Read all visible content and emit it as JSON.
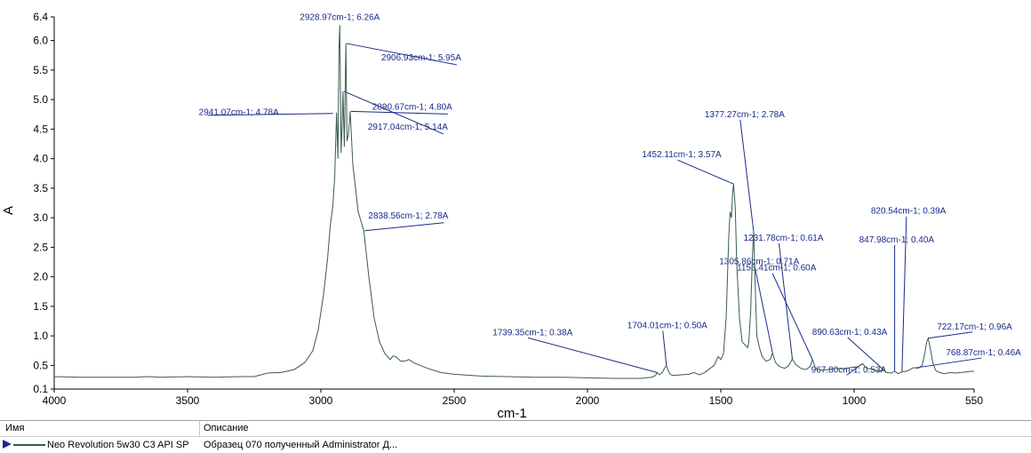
{
  "chart_data": {
    "type": "line",
    "xlabel": "cm-1",
    "ylabel": "A",
    "xlim": [
      4000,
      550
    ],
    "ylim": [
      0.1,
      6.4
    ],
    "x_ticks": [
      4000,
      3500,
      3000,
      2500,
      2000,
      1500,
      1000,
      550
    ],
    "y_ticks": [
      "0.1",
      "0.5",
      "1.0",
      "1.5",
      "2.0",
      "2.5",
      "3.0",
      "3.5",
      "4.0",
      "4.5",
      "5.0",
      "5.5",
      "6.0",
      "6.4"
    ],
    "series": [
      {
        "name": "Neo Revolution 5w30 C3 API SP",
        "color": "#3a5a50",
        "points": [
          [
            4000,
            0.31
          ],
          [
            3900,
            0.3
          ],
          [
            3800,
            0.3
          ],
          [
            3700,
            0.3
          ],
          [
            3650,
            0.31
          ],
          [
            3600,
            0.3
          ],
          [
            3500,
            0.31
          ],
          [
            3400,
            0.3
          ],
          [
            3300,
            0.31
          ],
          [
            3250,
            0.31
          ],
          [
            3200,
            0.37
          ],
          [
            3150,
            0.38
          ],
          [
            3100,
            0.43
          ],
          [
            3060,
            0.55
          ],
          [
            3030,
            0.75
          ],
          [
            3010,
            1.1
          ],
          [
            2990,
            1.7
          ],
          [
            2975,
            2.3
          ],
          [
            2965,
            2.85
          ],
          [
            2955,
            3.2
          ],
          [
            2948,
            3.7
          ],
          [
            2941,
            4.78
          ],
          [
            2936,
            4.0
          ],
          [
            2932,
            5.85
          ],
          [
            2929,
            6.26
          ],
          [
            2924,
            4.1
          ],
          [
            2920,
            4.6
          ],
          [
            2917,
            5.14
          ],
          [
            2912,
            4.2
          ],
          [
            2906,
            5.95
          ],
          [
            2902,
            4.3
          ],
          [
            2897,
            4.4
          ],
          [
            2893,
            4.6
          ],
          [
            2890,
            4.8
          ],
          [
            2880,
            3.9
          ],
          [
            2870,
            3.5
          ],
          [
            2860,
            3.1
          ],
          [
            2850,
            2.95
          ],
          [
            2839,
            2.78
          ],
          [
            2820,
            2.0
          ],
          [
            2800,
            1.3
          ],
          [
            2780,
            0.9
          ],
          [
            2760,
            0.7
          ],
          [
            2740,
            0.6
          ],
          [
            2730,
            0.66
          ],
          [
            2720,
            0.65
          ],
          [
            2700,
            0.57
          ],
          [
            2680,
            0.58
          ],
          [
            2670,
            0.6
          ],
          [
            2650,
            0.54
          ],
          [
            2600,
            0.45
          ],
          [
            2550,
            0.38
          ],
          [
            2500,
            0.35
          ],
          [
            2400,
            0.32
          ],
          [
            2300,
            0.31
          ],
          [
            2200,
            0.3
          ],
          [
            2100,
            0.3
          ],
          [
            2000,
            0.29
          ],
          [
            1900,
            0.28
          ],
          [
            1850,
            0.28
          ],
          [
            1800,
            0.28
          ],
          [
            1760,
            0.3
          ],
          [
            1745,
            0.33
          ],
          [
            1739,
            0.38
          ],
          [
            1730,
            0.34
          ],
          [
            1720,
            0.38
          ],
          [
            1710,
            0.46
          ],
          [
            1704,
            0.5
          ],
          [
            1698,
            0.42
          ],
          [
            1690,
            0.35
          ],
          [
            1680,
            0.33
          ],
          [
            1650,
            0.34
          ],
          [
            1620,
            0.35
          ],
          [
            1600,
            0.38
          ],
          [
            1580,
            0.34
          ],
          [
            1560,
            0.38
          ],
          [
            1540,
            0.45
          ],
          [
            1525,
            0.5
          ],
          [
            1510,
            0.65
          ],
          [
            1500,
            0.6
          ],
          [
            1490,
            0.7
          ],
          [
            1480,
            1.3
          ],
          [
            1470,
            2.7
          ],
          [
            1465,
            3.1
          ],
          [
            1460,
            3.0
          ],
          [
            1456,
            3.4
          ],
          [
            1452,
            3.57
          ],
          [
            1446,
            3.2
          ],
          [
            1440,
            2.2
          ],
          [
            1430,
            1.3
          ],
          [
            1420,
            0.9
          ],
          [
            1410,
            0.85
          ],
          [
            1400,
            0.8
          ],
          [
            1395,
            0.9
          ],
          [
            1388,
            1.4
          ],
          [
            1382,
            2.3
          ],
          [
            1377,
            2.78
          ],
          [
            1372,
            2.0
          ],
          [
            1365,
            1.0
          ],
          [
            1355,
            0.8
          ],
          [
            1345,
            0.65
          ],
          [
            1330,
            0.57
          ],
          [
            1315,
            0.6
          ],
          [
            1306,
            0.71
          ],
          [
            1295,
            0.55
          ],
          [
            1280,
            0.48
          ],
          [
            1260,
            0.45
          ],
          [
            1245,
            0.5
          ],
          [
            1232,
            0.61
          ],
          [
            1220,
            0.52
          ],
          [
            1200,
            0.45
          ],
          [
            1180,
            0.43
          ],
          [
            1165,
            0.48
          ],
          [
            1156,
            0.6
          ],
          [
            1145,
            0.45
          ],
          [
            1120,
            0.42
          ],
          [
            1100,
            0.43
          ],
          [
            1080,
            0.44
          ],
          [
            1060,
            0.45
          ],
          [
            1040,
            0.44
          ],
          [
            1020,
            0.46
          ],
          [
            1000,
            0.47
          ],
          [
            985,
            0.48
          ],
          [
            968,
            0.53
          ],
          [
            955,
            0.46
          ],
          [
            940,
            0.44
          ],
          [
            920,
            0.42
          ],
          [
            905,
            0.4
          ],
          [
            891,
            0.43
          ],
          [
            880,
            0.38
          ],
          [
            860,
            0.37
          ],
          [
            848,
            0.4
          ],
          [
            835,
            0.36
          ],
          [
            821,
            0.39
          ],
          [
            805,
            0.4
          ],
          [
            790,
            0.43
          ],
          [
            780,
            0.46
          ],
          [
            769,
            0.46
          ],
          [
            760,
            0.45
          ],
          [
            745,
            0.5
          ],
          [
            735,
            0.7
          ],
          [
            728,
            0.9
          ],
          [
            722,
            0.96
          ],
          [
            715,
            0.8
          ],
          [
            705,
            0.55
          ],
          [
            695,
            0.42
          ],
          [
            680,
            0.38
          ],
          [
            660,
            0.36
          ],
          [
            640,
            0.38
          ],
          [
            620,
            0.37
          ],
          [
            600,
            0.38
          ],
          [
            580,
            0.39
          ],
          [
            560,
            0.4
          ],
          [
            550,
            0.4
          ]
        ]
      }
    ],
    "annotations": [
      {
        "label": "2928.97cm-1; 6.26A",
        "x": 2928.97,
        "y": 6.26
      },
      {
        "label": "2906.93cm-1; 5.95A",
        "x": 2906.93,
        "y": 5.95
      },
      {
        "label": "2917.04cm-1; 5.14A",
        "x": 2917.04,
        "y": 5.14
      },
      {
        "label": "2941.07cm-1; 4.78A",
        "x": 2941.07,
        "y": 4.78
      },
      {
        "label": "2890.67cm-1; 4.80A",
        "x": 2890.67,
        "y": 4.8
      },
      {
        "label": "2838.56cm-1; 2.78A",
        "x": 2838.56,
        "y": 2.78
      },
      {
        "label": "1377.27cm-1; 2.78A",
        "x": 1377.27,
        "y": 2.78
      },
      {
        "label": "1305.86cm-1; 0.71A",
        "x": 1305.86,
        "y": 0.71
      },
      {
        "label": "1452.11cm-1; 3.57A",
        "x": 1452.11,
        "y": 3.57
      },
      {
        "label": "1231.78cm-1; 0.61A",
        "x": 1231.78,
        "y": 0.61
      },
      {
        "label": "1156.41cm-1; 0.60A",
        "x": 1156.41,
        "y": 0.6
      },
      {
        "label": "820.54cm-1; 0.39A",
        "x": 820.54,
        "y": 0.39
      },
      {
        "label": "847.98cm-1; 0.40A",
        "x": 847.98,
        "y": 0.4
      },
      {
        "label": "722.17cm-1; 0.96A",
        "x": 722.17,
        "y": 0.96
      },
      {
        "label": "1739.35cm-1; 0.38A",
        "x": 1739.35,
        "y": 0.38
      },
      {
        "label": "1704.01cm-1; 0.50A",
        "x": 1704.01,
        "y": 0.5
      },
      {
        "label": "890.63cm-1; 0.43A",
        "x": 890.63,
        "y": 0.43
      },
      {
        "label": "768.87cm-1; 0.46A",
        "x": 768.87,
        "y": 0.46
      },
      {
        "label": "967.80cm-1; 0.53A",
        "x": 967.8,
        "y": 0.53
      }
    ],
    "grid": false,
    "legend": "bottom-table"
  },
  "legend_table": {
    "headers": {
      "name": "Имя",
      "description": "Описание"
    },
    "row": {
      "name": "Neo Revolution 5w30 C3 API SP",
      "description": "Образец 070 полученный Administrator Д..."
    }
  },
  "colors": {
    "label_text": "#1a2a8a",
    "leader_line": "#1a2a8a",
    "spectrum": "#3a5a50"
  }
}
